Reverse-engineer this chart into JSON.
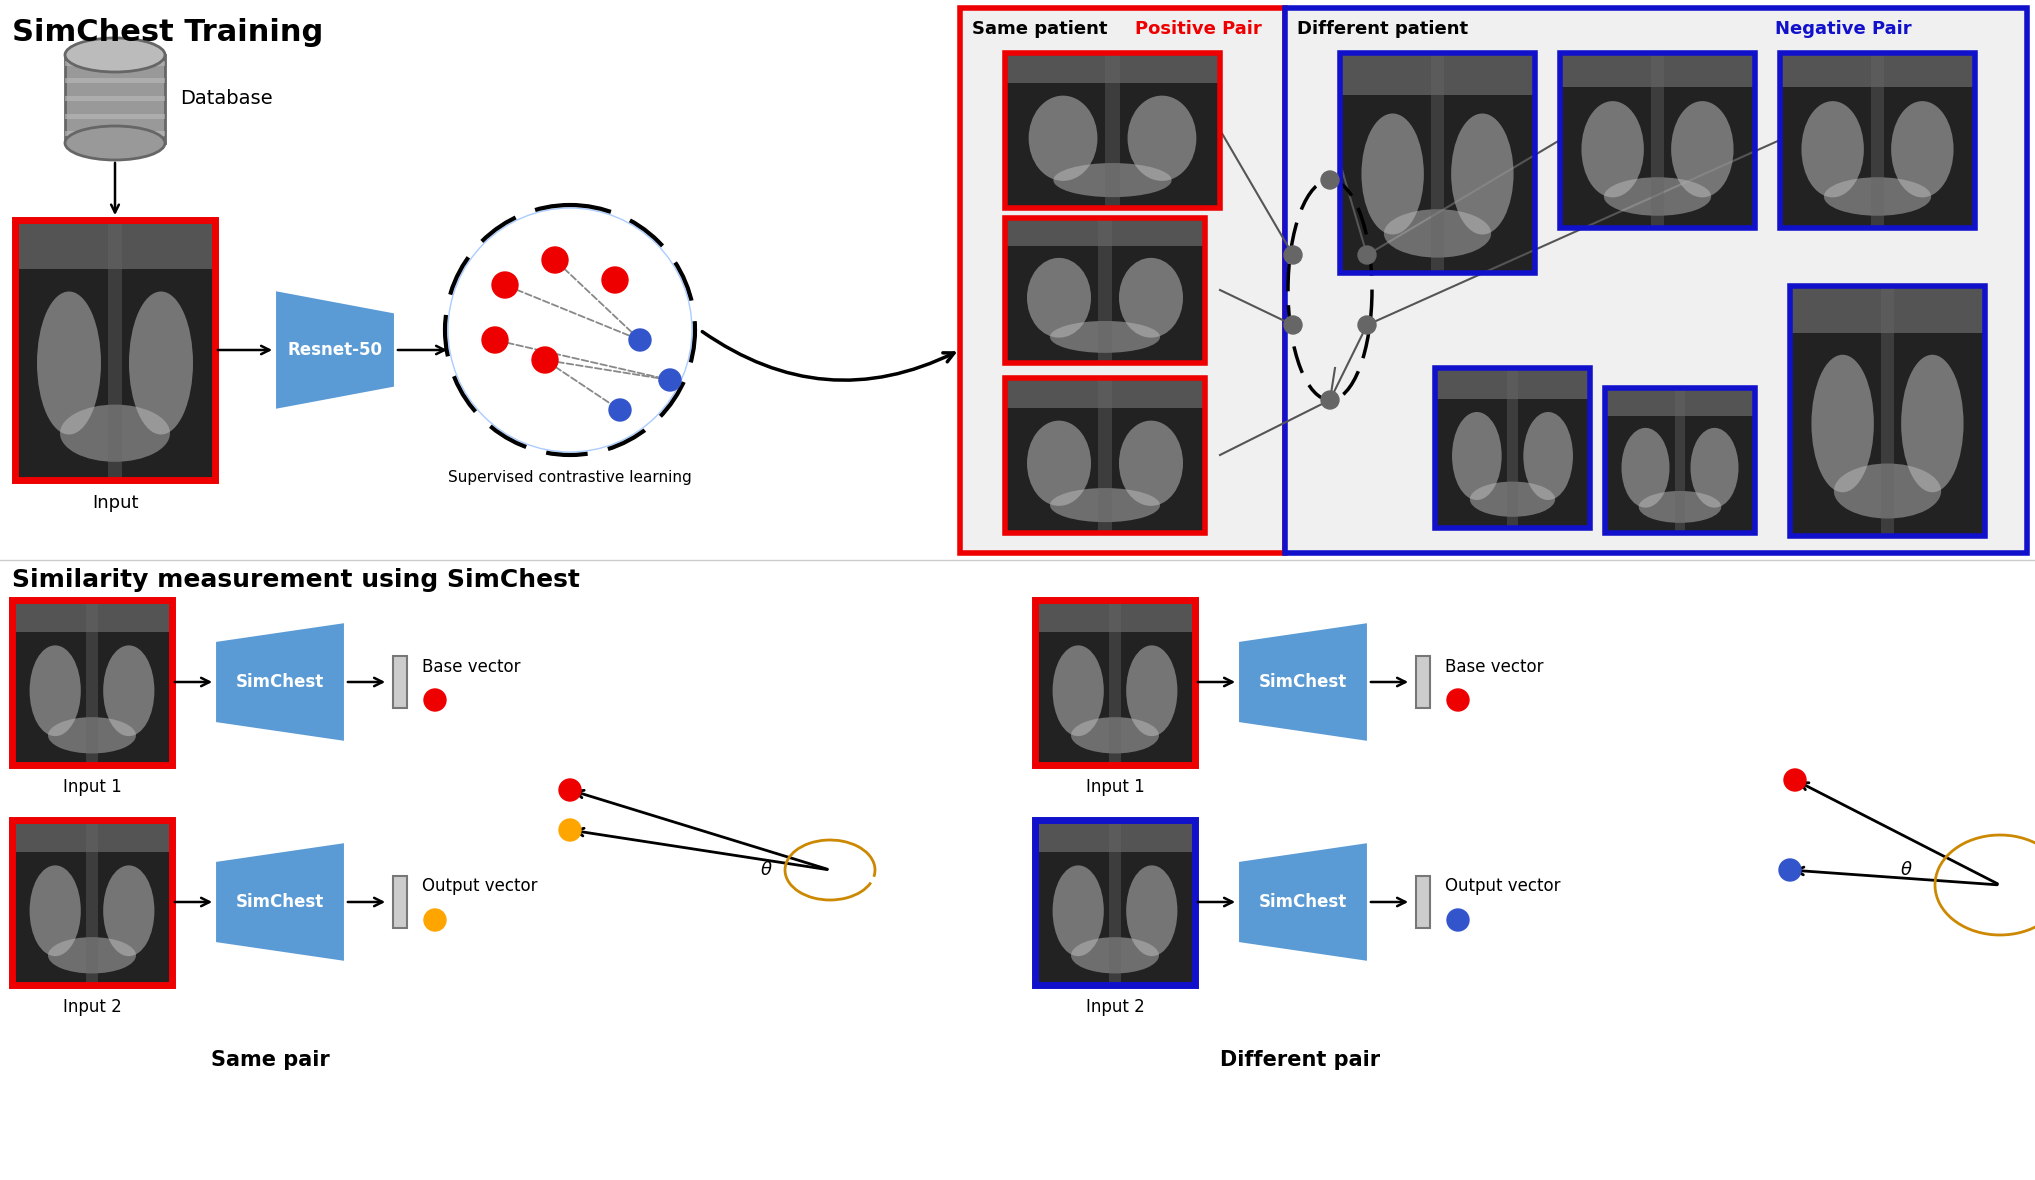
{
  "bg_color": "#ffffff",
  "section1_title": "SimChest Training",
  "section2_title": "Similarity measurement using SimChest",
  "same_patient_label": "Same patient",
  "positive_pair_label": "Positive Pair",
  "different_patient_label": "Different patient",
  "negative_pair_label": "Negative Pair",
  "database_label": "Database",
  "resnet_label": "Resnet-50",
  "contrastive_label": "Supervised contrastive learning",
  "input_label": "Input",
  "input1_label": "Input 1",
  "input2_label": "Input 2",
  "simchest_label": "SimChest",
  "base_vector_label": "Base vector",
  "output_vector_label": "Output vector",
  "same_pair_label": "Same pair",
  "different_pair_label": "Different pair",
  "red_color": "#EE0000",
  "blue_color": "#1111CC",
  "dot_blue": "#3355CC",
  "dot_red": "#EE0000",
  "dot_orange": "#FFA500",
  "trapezoid_blue": "#5B9BD5",
  "trapezoid_blue_light": "#A8C8E8",
  "gray_dot": "#666666",
  "xray_bg": "#888888",
  "xray_lung": "#cccccc",
  "xray_dark": "#333333",
  "db_gray": "#999999",
  "db_stripe": "#bbbbbb",
  "db_dark": "#666666"
}
